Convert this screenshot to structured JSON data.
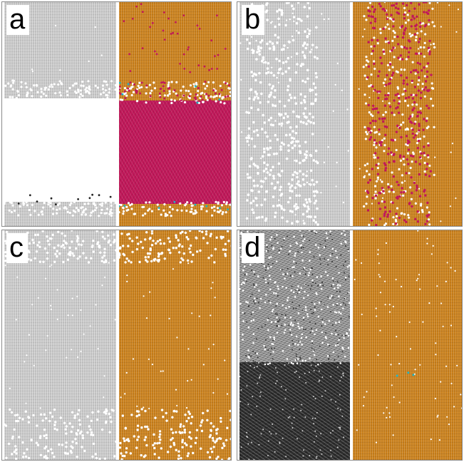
{
  "figure": {
    "panels": [
      {
        "id": "a",
        "label": "a"
      },
      {
        "id": "b",
        "label": "b"
      },
      {
        "id": "c",
        "label": "c"
      },
      {
        "id": "d",
        "label": "d"
      }
    ]
  },
  "colors": {
    "frame": "#8a8a8a",
    "gray_lattice": "#c6c6c6",
    "orange_lattice": "#c9801c",
    "magenta_phase": "#c0195a",
    "dark_lattice": "#2e2e2e",
    "cyan_defect": "#1fb5c4"
  }
}
